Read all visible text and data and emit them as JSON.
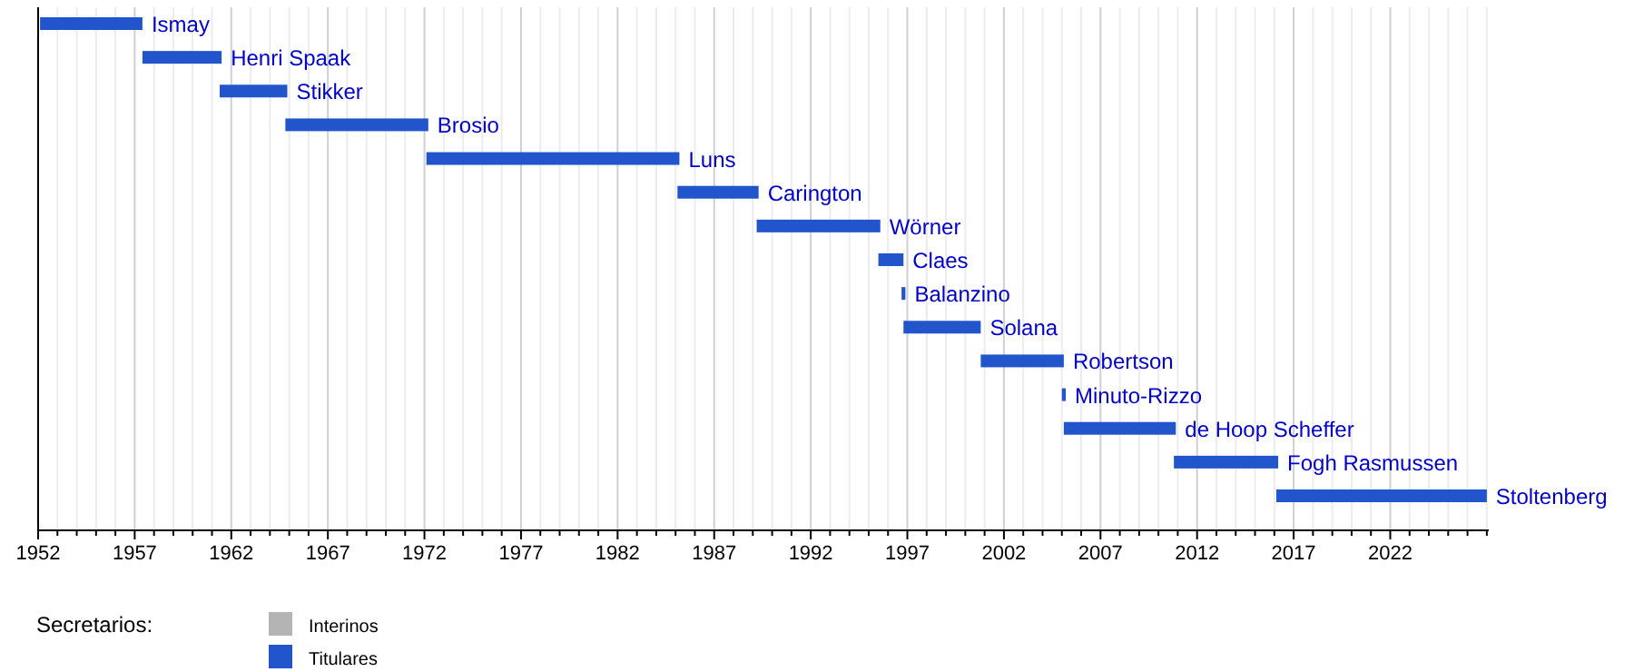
{
  "chart_data": {
    "type": "bar",
    "orientation": "horizontal",
    "legend_title": "Secretarios:",
    "legend": "bottom left",
    "grid": "x",
    "categories": [
      "Ismay",
      "Henri Spaak",
      "Stikker",
      "Brosio",
      "Luns",
      "Carington",
      "Wörner",
      "Claes",
      "Balanzino",
      "Solana",
      "Robertson",
      "Minuto-Rizzo",
      "de Hoop Scheffer",
      "Fogh Rasmussen",
      "Stoltenberg"
    ],
    "series": [
      {
        "name": "Interinos",
        "color": "#b4b4b4",
        "values": [
          null,
          null,
          null,
          null,
          null,
          null,
          null,
          null,
          null,
          null,
          null,
          null,
          null,
          null,
          null
        ]
      },
      {
        "name": "Titulares",
        "color": "#2255cc",
        "base": [
          1952.1,
          1957.4,
          1961.4,
          1964.8,
          1972.1,
          1985.1,
          1989.2,
          1995.5,
          1996.7,
          1996.8,
          2000.8,
          2005.0,
          2005.1,
          2010.8,
          2016.1
        ],
        "values": [
          5.3,
          4.1,
          3.5,
          7.4,
          13.1,
          4.2,
          6.4,
          1.3,
          0.2,
          4.0,
          4.3,
          0.2,
          5.8,
          5.4,
          10.9
        ]
      }
    ],
    "xlim": [
      1952,
      2027.1
    ],
    "xticks": [
      1952,
      {
        "value": 1953,
        "label": null
      },
      {
        "value": 1954,
        "label": null
      },
      {
        "value": 1955,
        "label": null
      },
      {
        "value": 1956,
        "label": null
      },
      1957,
      {
        "value": 1958,
        "label": null
      },
      {
        "value": 1959,
        "label": null
      },
      {
        "value": 1960,
        "label": null
      },
      {
        "value": 1961,
        "label": null
      },
      1962,
      {
        "value": 1963,
        "label": null
      },
      {
        "value": 1964,
        "label": null
      },
      {
        "value": 1965,
        "label": null
      },
      {
        "value": 1966,
        "label": null
      },
      1967,
      {
        "value": 1968,
        "label": null
      },
      {
        "value": 1969,
        "label": null
      },
      {
        "value": 1970,
        "label": null
      },
      {
        "value": 1971,
        "label": null
      },
      1972,
      {
        "value": 1973,
        "label": null
      },
      {
        "value": 1974,
        "label": null
      },
      {
        "value": 1975,
        "label": null
      },
      {
        "value": 1976,
        "label": null
      },
      1977,
      {
        "value": 1978,
        "label": null
      },
      {
        "value": 1979,
        "label": null
      },
      {
        "value": 1980,
        "label": null
      },
      {
        "value": 1981,
        "label": null
      },
      1982,
      {
        "value": 1983,
        "label": null
      },
      {
        "value": 1984,
        "label": null
      },
      {
        "value": 1985,
        "label": null
      },
      {
        "value": 1986,
        "label": null
      },
      1987,
      {
        "value": 1988,
        "label": null
      },
      {
        "value": 1989,
        "label": null
      },
      {
        "value": 1990,
        "label": null
      },
      {
        "value": 1991,
        "label": null
      },
      1992,
      {
        "value": 1993,
        "label": null
      },
      {
        "value": 1994,
        "label": null
      },
      {
        "value": 1995,
        "label": null
      },
      {
        "value": 1996,
        "label": null
      },
      1997,
      {
        "value": 1998,
        "label": null
      },
      {
        "value": 1999,
        "label": null
      },
      {
        "value": 2000,
        "label": null
      },
      {
        "value": 2001,
        "label": null
      },
      2002,
      {
        "value": 2003,
        "label": null
      },
      {
        "value": 2004,
        "label": null
      },
      {
        "value": 2005,
        "label": null
      },
      {
        "value": 2006,
        "label": null
      },
      2007,
      {
        "value": 2008,
        "label": null
      },
      {
        "value": 2009,
        "label": null
      },
      {
        "value": 2010,
        "label": null
      },
      {
        "value": 2011,
        "label": null
      },
      2012,
      {
        "value": 2013,
        "label": null
      },
      {
        "value": 2014,
        "label": null
      },
      {
        "value": 2015,
        "label": null
      },
      {
        "value": 2016,
        "label": null
      },
      2017,
      {
        "value": 2018,
        "label": null
      },
      {
        "value": 2019,
        "label": null
      },
      {
        "value": 2020,
        "label": null
      },
      {
        "value": 2021,
        "label": null
      },
      2022,
      {
        "value": 2023,
        "label": null
      },
      {
        "value": 2024,
        "label": null
      },
      {
        "value": 2025,
        "label": null
      },
      {
        "value": 2026,
        "label": null
      },
      {
        "value": 2027,
        "label": null
      }
    ]
  }
}
